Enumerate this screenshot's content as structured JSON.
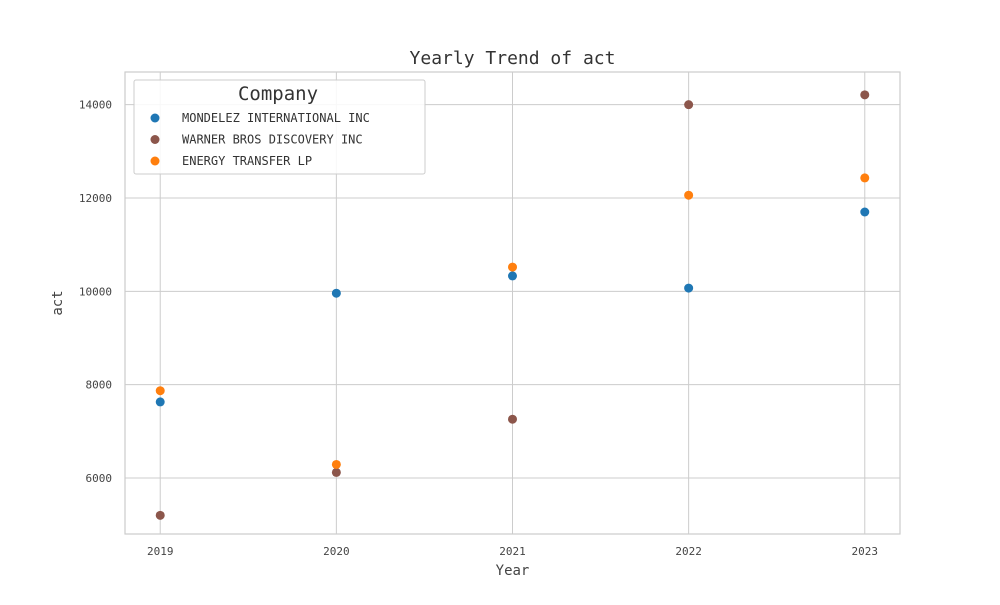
{
  "chart_data": {
    "type": "scatter",
    "title": "Yearly Trend of act",
    "xlabel": "Year",
    "ylabel": "act",
    "x": [
      2019,
      2020,
      2021,
      2022,
      2023
    ],
    "x_tick_labels": [
      "2019",
      "2020",
      "2021",
      "2022",
      "2023"
    ],
    "xlim": [
      2018.8,
      2023.2
    ],
    "ylim": [
      4800,
      14700
    ],
    "y_ticks": [
      6000,
      8000,
      10000,
      12000,
      14000
    ],
    "grid": true,
    "legend": {
      "title": "Company",
      "placement": "top-left"
    },
    "series": [
      {
        "name": "MONDELEZ INTERNATIONAL INC",
        "color": "#1f77b4",
        "values": [
          7630,
          9960,
          10330,
          10070,
          11700
        ]
      },
      {
        "name": "WARNER BROS DISCOVERY INC",
        "color": "#8c564b",
        "values": [
          5200,
          6120,
          7260,
          14000,
          14210
        ]
      },
      {
        "name": "ENERGY TRANSFER LP",
        "color": "#ff7f0e",
        "values": [
          7870,
          6290,
          10520,
          12060,
          12430
        ]
      }
    ]
  }
}
